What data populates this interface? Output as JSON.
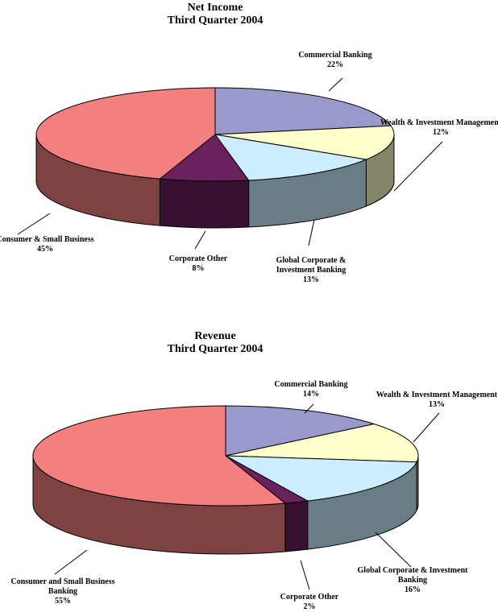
{
  "chart_data": [
    {
      "type": "pie",
      "title": "Net Income",
      "subtitle": "Third Quarter 2004",
      "slices": [
        {
          "name": "Commercial Banking",
          "label_lines": [
            "Commercial Banking"
          ],
          "value_label": "22%",
          "value": 22,
          "color": "#9999cc"
        },
        {
          "name": "Wealth & Investment Management",
          "label_lines": [
            "Wealth & Investment Management"
          ],
          "value_label": "12%",
          "value": 12,
          "color": "#ffffcc"
        },
        {
          "name": "Global Corporate & Investment Banking",
          "label_lines": [
            "Global Corporate &",
            "Investment Banking"
          ],
          "value_label": "13%",
          "value": 13,
          "color": "#cceeff"
        },
        {
          "name": "Corporate Other",
          "label_lines": [
            "Corporate Other"
          ],
          "value_label": "8%",
          "value": 8,
          "color": "#6b2060"
        },
        {
          "name": "Consumer & Small Business",
          "label_lines": [
            "Consumer & Small Business"
          ],
          "value_label": "45%",
          "value": 45,
          "color": "#f47f7f"
        }
      ]
    },
    {
      "type": "pie",
      "title": "Revenue",
      "subtitle": "Third Quarter 2004",
      "slices": [
        {
          "name": "Commercial Banking",
          "label_lines": [
            "Commercial Banking"
          ],
          "value_label": "14%",
          "value": 14,
          "color": "#9999cc"
        },
        {
          "name": "Wealth & Investment Management",
          "label_lines": [
            "Wealth & Investment Management"
          ],
          "value_label": "13%",
          "value": 13,
          "color": "#ffffcc"
        },
        {
          "name": "Global Corporate & Investment Banking",
          "label_lines": [
            "Global Corporate & Investment",
            "Banking"
          ],
          "value_label": "16%",
          "value": 16,
          "color": "#cceeff"
        },
        {
          "name": "Corporate Other",
          "label_lines": [
            "Corporate Other"
          ],
          "value_label": "2%",
          "value": 2,
          "color": "#6b2060"
        },
        {
          "name": "Consumer and Small Business Banking",
          "label_lines": [
            "Consumer and Small Business",
            "Banking"
          ],
          "value_label": "55%",
          "value": 55,
          "color": "#f47f7f"
        }
      ]
    }
  ]
}
